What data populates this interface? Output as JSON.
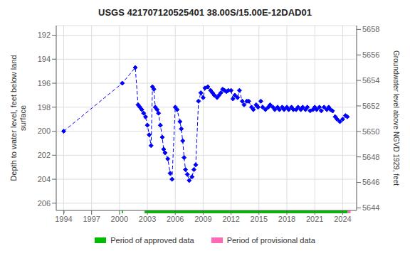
{
  "chart_data": {
    "type": "line",
    "title": "USGS 421707120525401 38.00S/15.00E-12DAD01",
    "y_label": "Depth to water level, feet below land\nsurface",
    "y2_label": "Groundwater level above NGVD 1929, feet",
    "x": [
      1994.0,
      2000.3,
      2001.7,
      2002.0,
      2002.2,
      2002.4,
      2002.6,
      2002.8,
      2003.0,
      2003.2,
      2003.4,
      2003.55,
      2003.7,
      2003.85,
      2004.05,
      2004.2,
      2004.4,
      2004.6,
      2004.75,
      2004.9,
      2005.2,
      2005.45,
      2005.65,
      2006.0,
      2006.2,
      2006.5,
      2006.65,
      2006.8,
      2006.95,
      2007.1,
      2007.3,
      2007.5,
      2007.8,
      2008.0,
      2008.2,
      2008.5,
      2008.75,
      2009.0,
      2009.2,
      2009.5,
      2009.8,
      2010.0,
      2010.2,
      2010.5,
      2010.7,
      2010.9,
      2011.1,
      2011.3,
      2011.5,
      2011.7,
      2012.0,
      2012.2,
      2012.4,
      2012.7,
      2012.9,
      2013.2,
      2013.4,
      2013.7,
      2013.9,
      2014.2,
      2014.4,
      2014.7,
      2014.9,
      2015.2,
      2015.4,
      2015.7,
      2016.0,
      2016.2,
      2016.5,
      2016.7,
      2017.0,
      2017.2,
      2017.5,
      2017.7,
      2018.0,
      2018.2,
      2018.5,
      2018.7,
      2019.0,
      2019.2,
      2019.5,
      2019.7,
      2020.0,
      2020.2,
      2020.5,
      2020.8,
      2021.0,
      2021.2,
      2021.5,
      2021.7,
      2022.0,
      2022.3,
      2022.5,
      2022.7,
      2022.9,
      2023.2,
      2023.4,
      2023.7,
      2024.0,
      2024.3,
      2024.5
    ],
    "values": [
      200.0,
      196.0,
      194.7,
      197.8,
      198.0,
      198.2,
      198.5,
      198.8,
      199.5,
      200.3,
      201.2,
      196.3,
      196.5,
      198.0,
      198.2,
      198.5,
      199.5,
      200.5,
      201.5,
      201.8,
      202.3,
      203.5,
      204.0,
      198.0,
      198.2,
      199.2,
      199.8,
      200.8,
      202.2,
      203.2,
      203.6,
      204.1,
      203.8,
      203.2,
      202.8,
      197.5,
      196.8,
      197.2,
      196.4,
      196.3,
      196.6,
      196.8,
      197.0,
      197.2,
      197.0,
      196.8,
      196.5,
      196.6,
      196.7,
      196.6,
      196.6,
      197.3,
      197.0,
      197.2,
      196.6,
      197.5,
      197.8,
      197.5,
      197.5,
      198.0,
      198.2,
      197.8,
      198.0,
      197.5,
      198.0,
      198.2,
      198.0,
      197.8,
      198.0,
      198.2,
      198.0,
      198.2,
      198.0,
      198.2,
      198.0,
      198.2,
      198.0,
      198.2,
      198.2,
      198.0,
      198.2,
      198.0,
      198.2,
      198.0,
      198.3,
      198.2,
      198.0,
      198.2,
      198.0,
      198.3,
      198.0,
      198.2,
      198.0,
      198.2,
      198.3,
      198.8,
      199.0,
      199.2,
      199.0,
      198.7,
      198.8
    ],
    "color": "#0000ff",
    "marker": "diamond",
    "line_style": "dashed",
    "xlim": [
      1993.2,
      2025.5
    ],
    "xticks": [
      1994,
      1997,
      2000,
      2003,
      2006,
      2009,
      2012,
      2015,
      2018,
      2021,
      2024
    ],
    "ylim": [
      206.6,
      191.2
    ],
    "yticks": [
      192,
      194,
      196,
      198,
      200,
      202,
      204,
      206
    ],
    "y2lim": [
      5643.8,
      5658.3
    ],
    "y2ticks": [
      5644,
      5646,
      5648,
      5650,
      5652,
      5654,
      5656,
      5658
    ],
    "grid": true,
    "legend": "bottom",
    "periods": [
      {
        "name": "Period of approved data",
        "color": "#00bb00",
        "ranges": [
          [
            1994.0,
            1994.08
          ],
          [
            2000.25,
            2000.38
          ],
          [
            2002.7,
            2024.55
          ]
        ]
      },
      {
        "name": "Period of provisional data",
        "color": "#ff69b4",
        "ranges": [
          [
            2024.55,
            2024.85
          ]
        ]
      }
    ]
  }
}
